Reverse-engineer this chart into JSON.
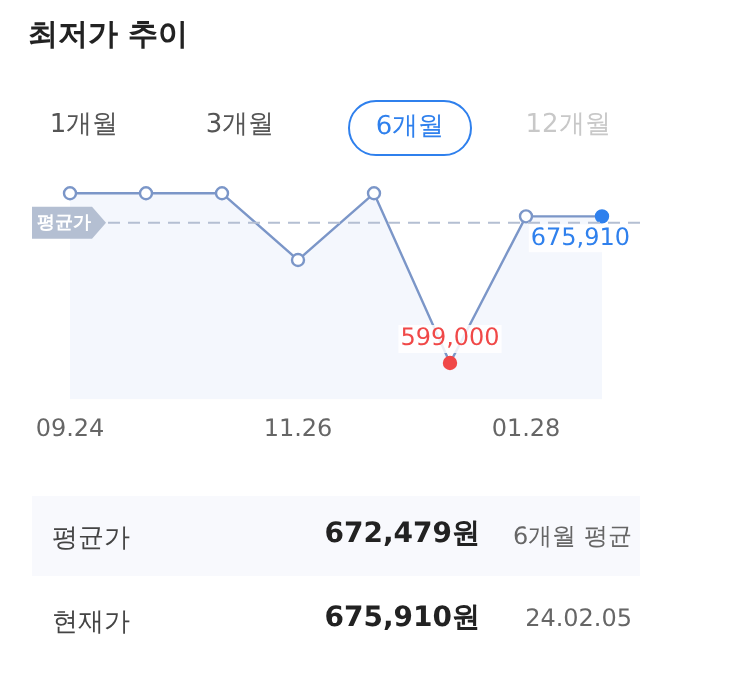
{
  "chart_data": {
    "type": "area",
    "title": "최저가 추이",
    "categories": [
      "09.24",
      null,
      null,
      "11.26",
      null,
      null,
      "01.28",
      null
    ],
    "series": [
      {
        "color": "#7b96c8",
        "colors": [
          "#ffffff",
          "#ffffff",
          "#ffffff",
          "#ffffff",
          "#ffffff",
          "#f04848",
          "#ffffff",
          "#2f80ed"
        ],
        "values": [
          688000,
          688000,
          688000,
          653000,
          688000,
          599000,
          675910,
          675910
        ],
        "value_labels": [
          null,
          null,
          null,
          null,
          null,
          "599,000",
          null,
          "675,910"
        ]
      }
    ],
    "tick_labels": "x",
    "grid": false,
    "legend": false,
    "marker": "circle",
    "ref_lines": [
      {
        "axis": "y",
        "value": 672479,
        "label": "평균가",
        "color": "#b4bfd2",
        "line_style": "dashed"
      }
    ],
    "annotations": [
      "1개월",
      "3개월",
      "6개월",
      "12개월",
      "평균가",
      "672,479원",
      "6개월 평균",
      "현재가",
      "675,910원",
      "24.02.05"
    ]
  }
}
